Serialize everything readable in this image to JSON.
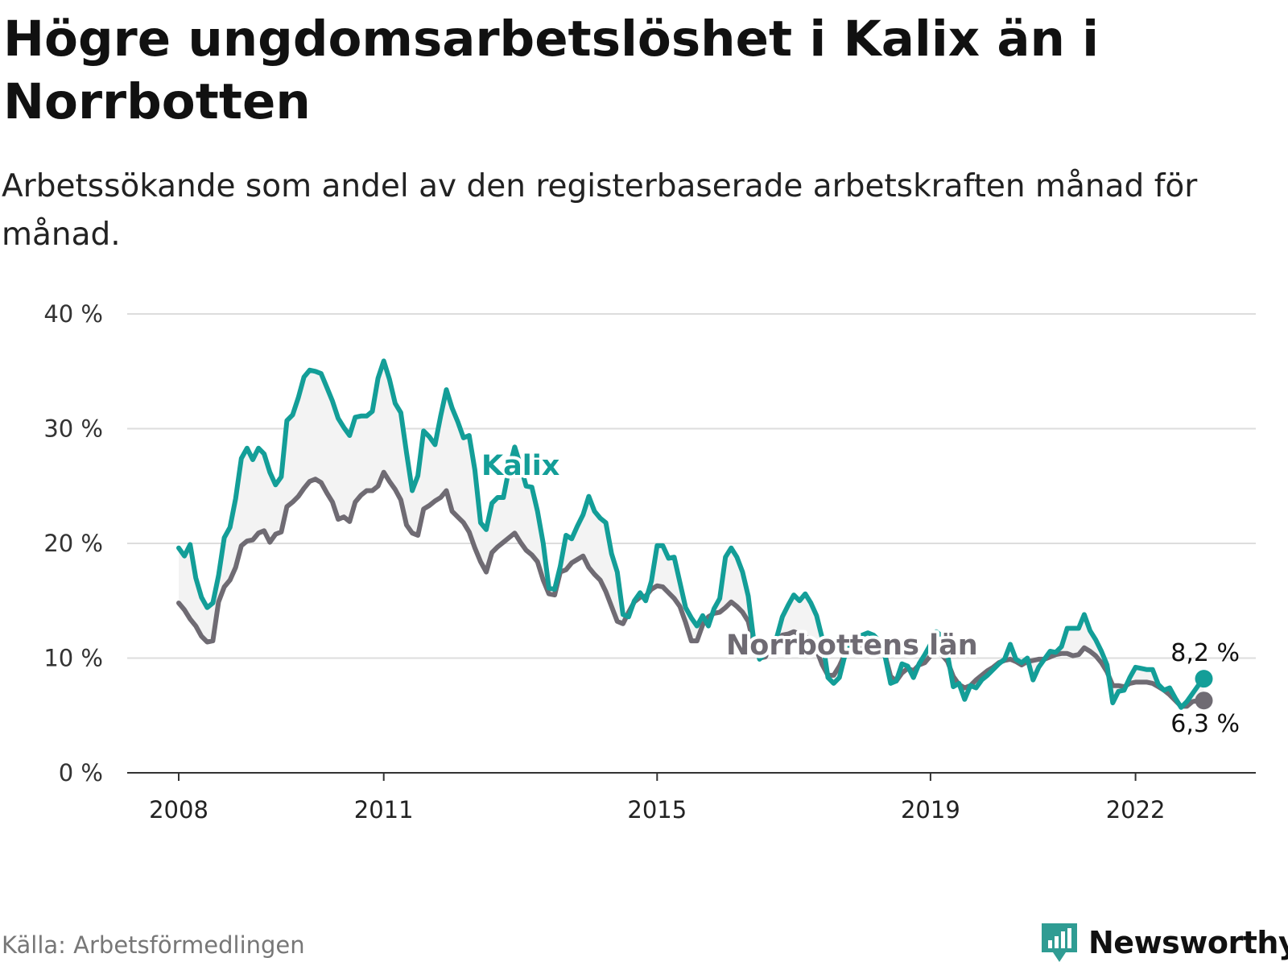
{
  "header": {
    "title": "Högre ungdomsarbetslöshet i Kalix än i Norrbotten",
    "subtitle": "Arbetssökande som andel av den registerbaserade arbetskraften månad för månad."
  },
  "footer": {
    "source": "Källa: Arbetsförmedlingen",
    "brand": "Newsworthy"
  },
  "colors": {
    "kalix": "#139e98",
    "norrbotten": "#6f6b73",
    "band": "#f3f3f3",
    "grid": "#dddddd",
    "axis": "#333333",
    "brand": "#2f9c93"
  },
  "chart_data": {
    "type": "line",
    "title": "Högre ungdomsarbetslöshet i Kalix än i Norrbotten",
    "subtitle": "Arbetssökande som andel av den registerbaserade arbetskraften månad för månad.",
    "xlabel": "",
    "ylabel": "",
    "x_start": "2008-01",
    "frequency": "monthly",
    "xlim": [
      2008.0,
      2023.0
    ],
    "ylim": [
      0,
      40
    ],
    "yticks": [
      0,
      10,
      20,
      30,
      40
    ],
    "ytick_labels": [
      "0 %",
      "10 %",
      "20 %",
      "30 %",
      "40 %"
    ],
    "xticks": [
      2008,
      2011,
      2015,
      2019,
      2022
    ],
    "xtick_labels": [
      "2008",
      "2011",
      "2015",
      "2019",
      "2022"
    ],
    "grid": true,
    "series": [
      {
        "name": "Kalix",
        "label": "Kalix",
        "end_label": "8,2 %",
        "values": [
          19.6,
          18.9,
          19.9,
          17.0,
          15.3,
          14.4,
          14.8,
          17.2,
          20.5,
          21.4,
          23.9,
          27.4,
          28.3,
          27.3,
          28.3,
          27.8,
          26.2,
          25.1,
          25.8,
          30.7,
          31.2,
          32.7,
          34.5,
          35.1,
          35.0,
          34.8,
          33.6,
          32.4,
          30.9,
          30.1,
          29.4,
          31.0,
          31.1,
          31.1,
          31.5,
          34.4,
          35.9,
          34.3,
          32.2,
          31.4,
          27.9,
          24.6,
          25.9,
          29.8,
          29.3,
          28.6,
          31.1,
          33.4,
          31.8,
          30.6,
          29.2,
          29.4,
          26.4,
          21.8,
          21.2,
          23.5,
          24.0,
          24.0,
          26.5,
          28.4,
          26.8,
          25.0,
          24.9,
          22.8,
          20.0,
          16.1,
          16.0,
          18.0,
          20.7,
          20.4,
          21.5,
          22.5,
          24.1,
          22.8,
          22.2,
          21.8,
          19.1,
          17.5,
          13.8,
          13.6,
          15.0,
          15.7,
          15.0,
          16.7,
          19.8,
          19.8,
          18.7,
          18.8,
          16.6,
          14.4,
          13.5,
          12.8,
          13.7,
          12.8,
          14.3,
          15.2,
          18.8,
          19.6,
          18.8,
          17.5,
          15.4,
          11.4,
          9.9,
          10.4,
          11.4,
          11.8,
          13.6,
          14.6,
          15.5,
          15.0,
          15.6,
          14.8,
          13.7,
          11.7,
          8.3,
          7.8,
          8.3,
          10.3,
          11.4,
          11.6,
          12.0,
          12.2,
          12.0,
          11.5,
          10.2,
          7.8,
          8.0,
          9.5,
          9.3,
          8.3,
          9.5,
          10.3,
          11.2,
          12.3,
          11.9,
          10.3,
          7.5,
          7.8,
          6.4,
          7.6,
          7.4,
          8.1,
          8.5,
          9.0,
          9.5,
          9.9,
          11.2,
          9.9,
          9.6,
          10.0,
          8.1,
          9.2,
          9.9,
          10.6,
          10.5,
          11.0,
          12.6,
          12.6,
          12.6,
          13.8,
          12.4,
          11.6,
          10.6,
          9.4,
          6.1,
          7.1,
          7.2,
          8.3,
          9.2,
          9.1,
          9.0,
          9.0,
          7.7,
          7.2,
          7.4,
          6.5,
          5.7,
          6.2,
          6.9,
          7.6,
          8.2
        ],
        "color": "#139e98"
      },
      {
        "name": "Norrbottens län",
        "label": "Norrbottens län",
        "end_label": "6,3 %",
        "values": [
          14.8,
          14.2,
          13.4,
          12.8,
          11.9,
          11.4,
          11.5,
          14.9,
          16.2,
          16.8,
          17.9,
          19.8,
          20.2,
          20.3,
          20.9,
          21.1,
          20.1,
          20.8,
          21.0,
          23.2,
          23.6,
          24.1,
          24.8,
          25.4,
          25.6,
          25.3,
          24.4,
          23.6,
          22.1,
          22.3,
          21.9,
          23.6,
          24.2,
          24.6,
          24.6,
          25.0,
          26.2,
          25.4,
          24.7,
          23.8,
          21.6,
          20.9,
          20.7,
          23.0,
          23.3,
          23.7,
          24.0,
          24.6,
          22.8,
          22.3,
          21.8,
          21.0,
          19.6,
          18.4,
          17.5,
          19.2,
          19.7,
          20.1,
          20.5,
          20.9,
          20.1,
          19.4,
          19.0,
          18.4,
          16.8,
          15.6,
          15.5,
          17.5,
          17.7,
          18.3,
          18.6,
          18.9,
          17.9,
          17.3,
          16.8,
          15.8,
          14.5,
          13.2,
          13.0,
          14.0,
          14.9,
          15.3,
          15.4,
          16.0,
          16.3,
          16.2,
          15.7,
          15.2,
          14.5,
          13.1,
          11.5,
          11.5,
          12.9,
          13.6,
          13.9,
          14.0,
          14.4,
          14.9,
          14.5,
          14.0,
          13.2,
          11.1,
          10.0,
          10.1,
          11.1,
          11.4,
          12.0,
          12.1,
          12.3,
          12.1,
          11.9,
          11.5,
          10.7,
          9.4,
          8.5,
          8.5,
          9.3,
          10.4,
          10.9,
          10.9,
          11.1,
          11.3,
          11.3,
          11.1,
          10.3,
          8.4,
          8.0,
          8.7,
          9.1,
          8.9,
          9.4,
          9.6,
          10.2,
          10.5,
          10.3,
          9.7,
          8.4,
          7.7,
          7.4,
          7.6,
          8.1,
          8.5,
          8.9,
          9.2,
          9.6,
          9.8,
          9.9,
          9.7,
          9.4,
          9.7,
          9.8,
          9.9,
          9.9,
          10.1,
          10.3,
          10.4,
          10.4,
          10.2,
          10.3,
          10.9,
          10.6,
          10.2,
          9.6,
          8.8,
          7.6,
          7.6,
          7.5,
          7.8,
          7.9,
          7.9,
          7.9,
          7.8,
          7.5,
          7.2,
          6.8,
          6.3,
          5.8,
          5.8,
          6.2,
          6.3,
          6.3
        ],
        "color": "#6f6b73"
      }
    ]
  }
}
